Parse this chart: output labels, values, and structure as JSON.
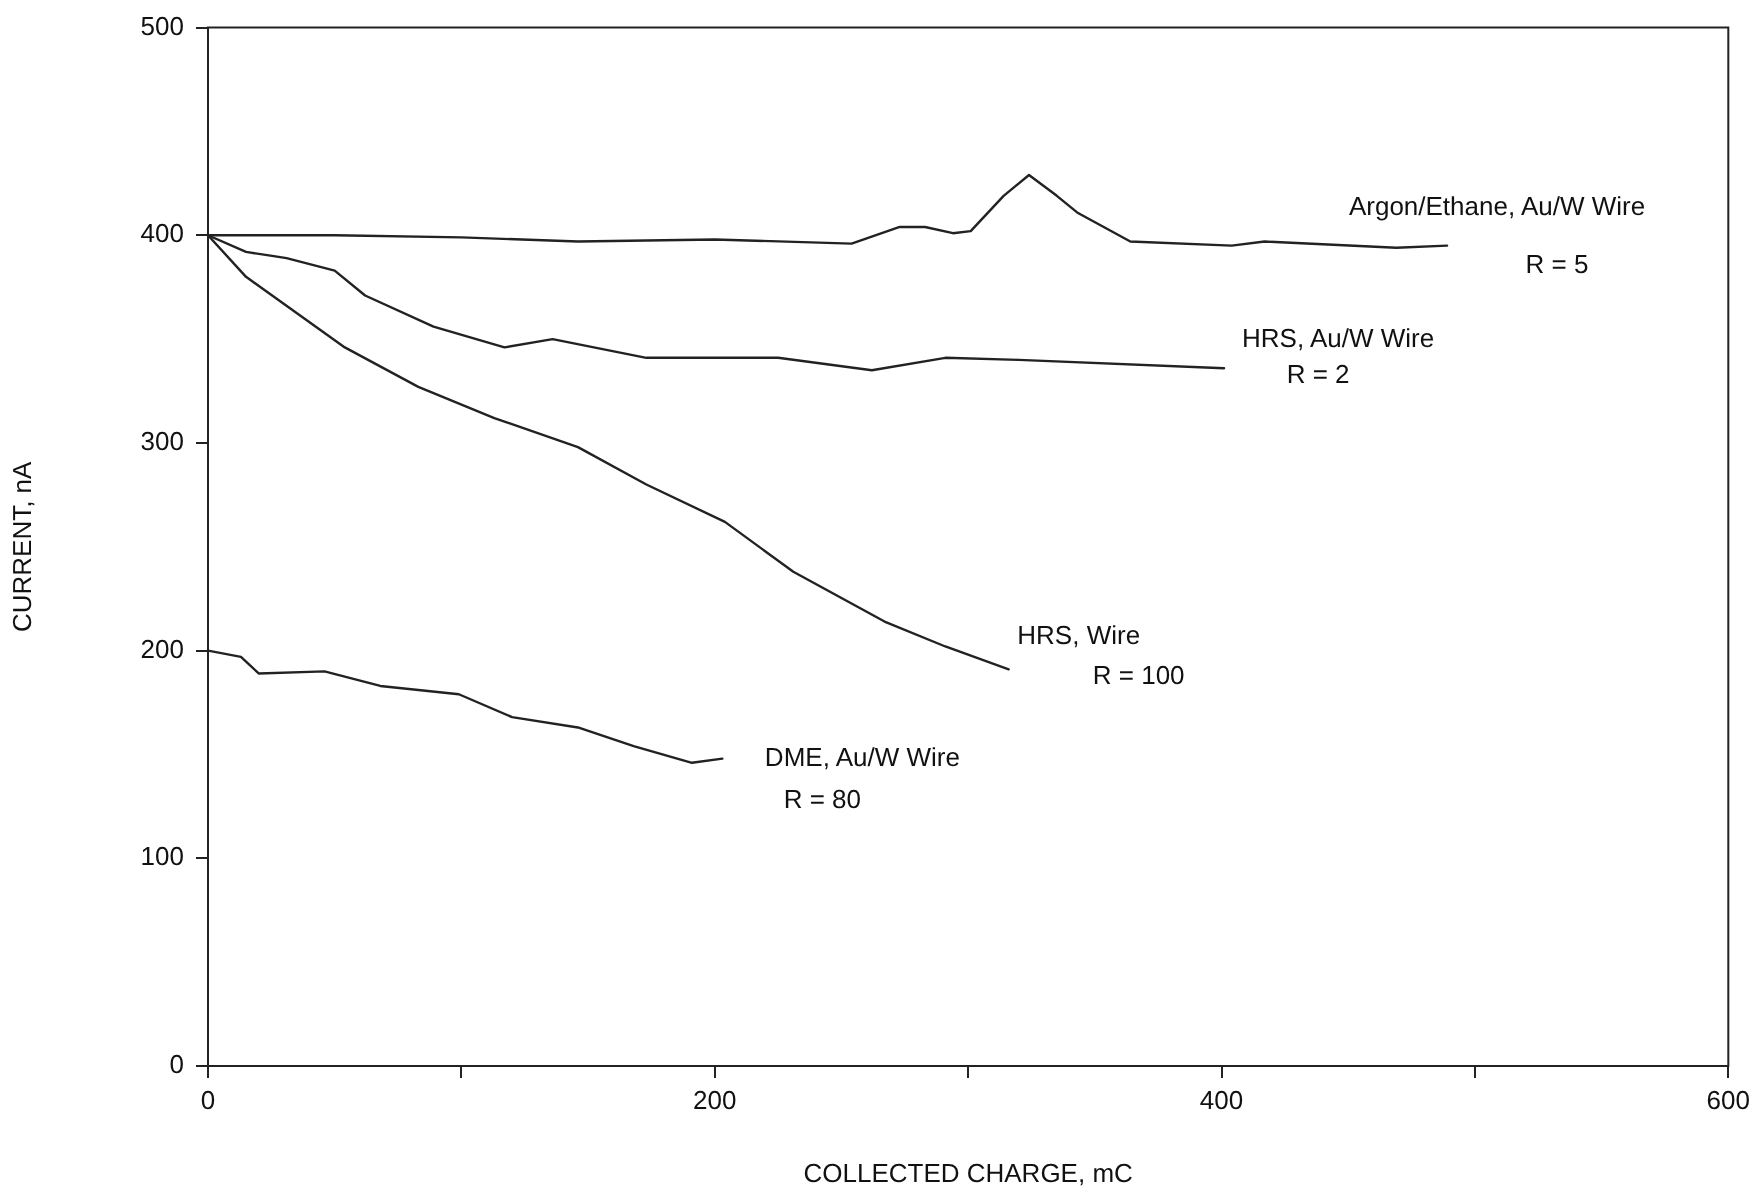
{
  "chart_data": {
    "type": "line",
    "xlabel": "COLLECTED CHARGE, mC",
    "ylabel": "CURRENT, nA",
    "xlim": [
      0,
      600
    ],
    "xticks": [
      0,
      {
        "value": 100,
        "label": null
      },
      200,
      {
        "value": 300,
        "label": null
      },
      400,
      {
        "value": 500,
        "label": null
      },
      600
    ],
    "ylim": [
      0,
      500
    ],
    "yticks": [
      0,
      100,
      200,
      300,
      400,
      500
    ],
    "grid": false,
    "legend": false,
    "marker": "none",
    "line_style": "solid",
    "series": [
      {
        "name": "Argon/Ethane, Au/W Wire",
        "color": "#222222",
        "x": [
          0,
          50,
          100,
          146,
          200,
          254,
          273,
          283,
          294,
          301,
          314,
          324,
          335,
          343,
          364,
          404,
          417,
          469,
          489
        ],
        "values": [
          400,
          400,
          399,
          397,
          398,
          396,
          404,
          404,
          401,
          402,
          419,
          429,
          419,
          411,
          397,
          395,
          397,
          394,
          395
        ]
      },
      {
        "name": "HRS, Au/W Wire",
        "color": "#222222",
        "x": [
          0,
          15,
          31,
          50,
          62,
          89,
          117,
          136,
          173,
          225,
          262,
          291,
          320,
          401
        ],
        "values": [
          400,
          392,
          389,
          383,
          371,
          356,
          346,
          350,
          341,
          341,
          335,
          341,
          340,
          336
        ]
      },
      {
        "name": "HRS, Wire",
        "color": "#222222",
        "x": [
          0,
          15,
          54,
          83,
          113,
          146,
          173,
          204,
          231,
          267,
          291,
          316
        ],
        "values": [
          400,
          380,
          346,
          327,
          312,
          298,
          280,
          262,
          238,
          214,
          202,
          191
        ]
      },
      {
        "name": "DME, Au/W Wire",
        "color": "#222222",
        "x": [
          0,
          13,
          20,
          46,
          68,
          99,
          120,
          146,
          168,
          191,
          203
        ],
        "values": [
          200,
          197,
          189,
          190,
          183,
          179,
          168,
          163,
          154,
          146,
          148
        ]
      }
    ],
    "annotations": [
      "R = 5",
      "R = 2",
      "R = 100",
      "R = 80"
    ]
  }
}
